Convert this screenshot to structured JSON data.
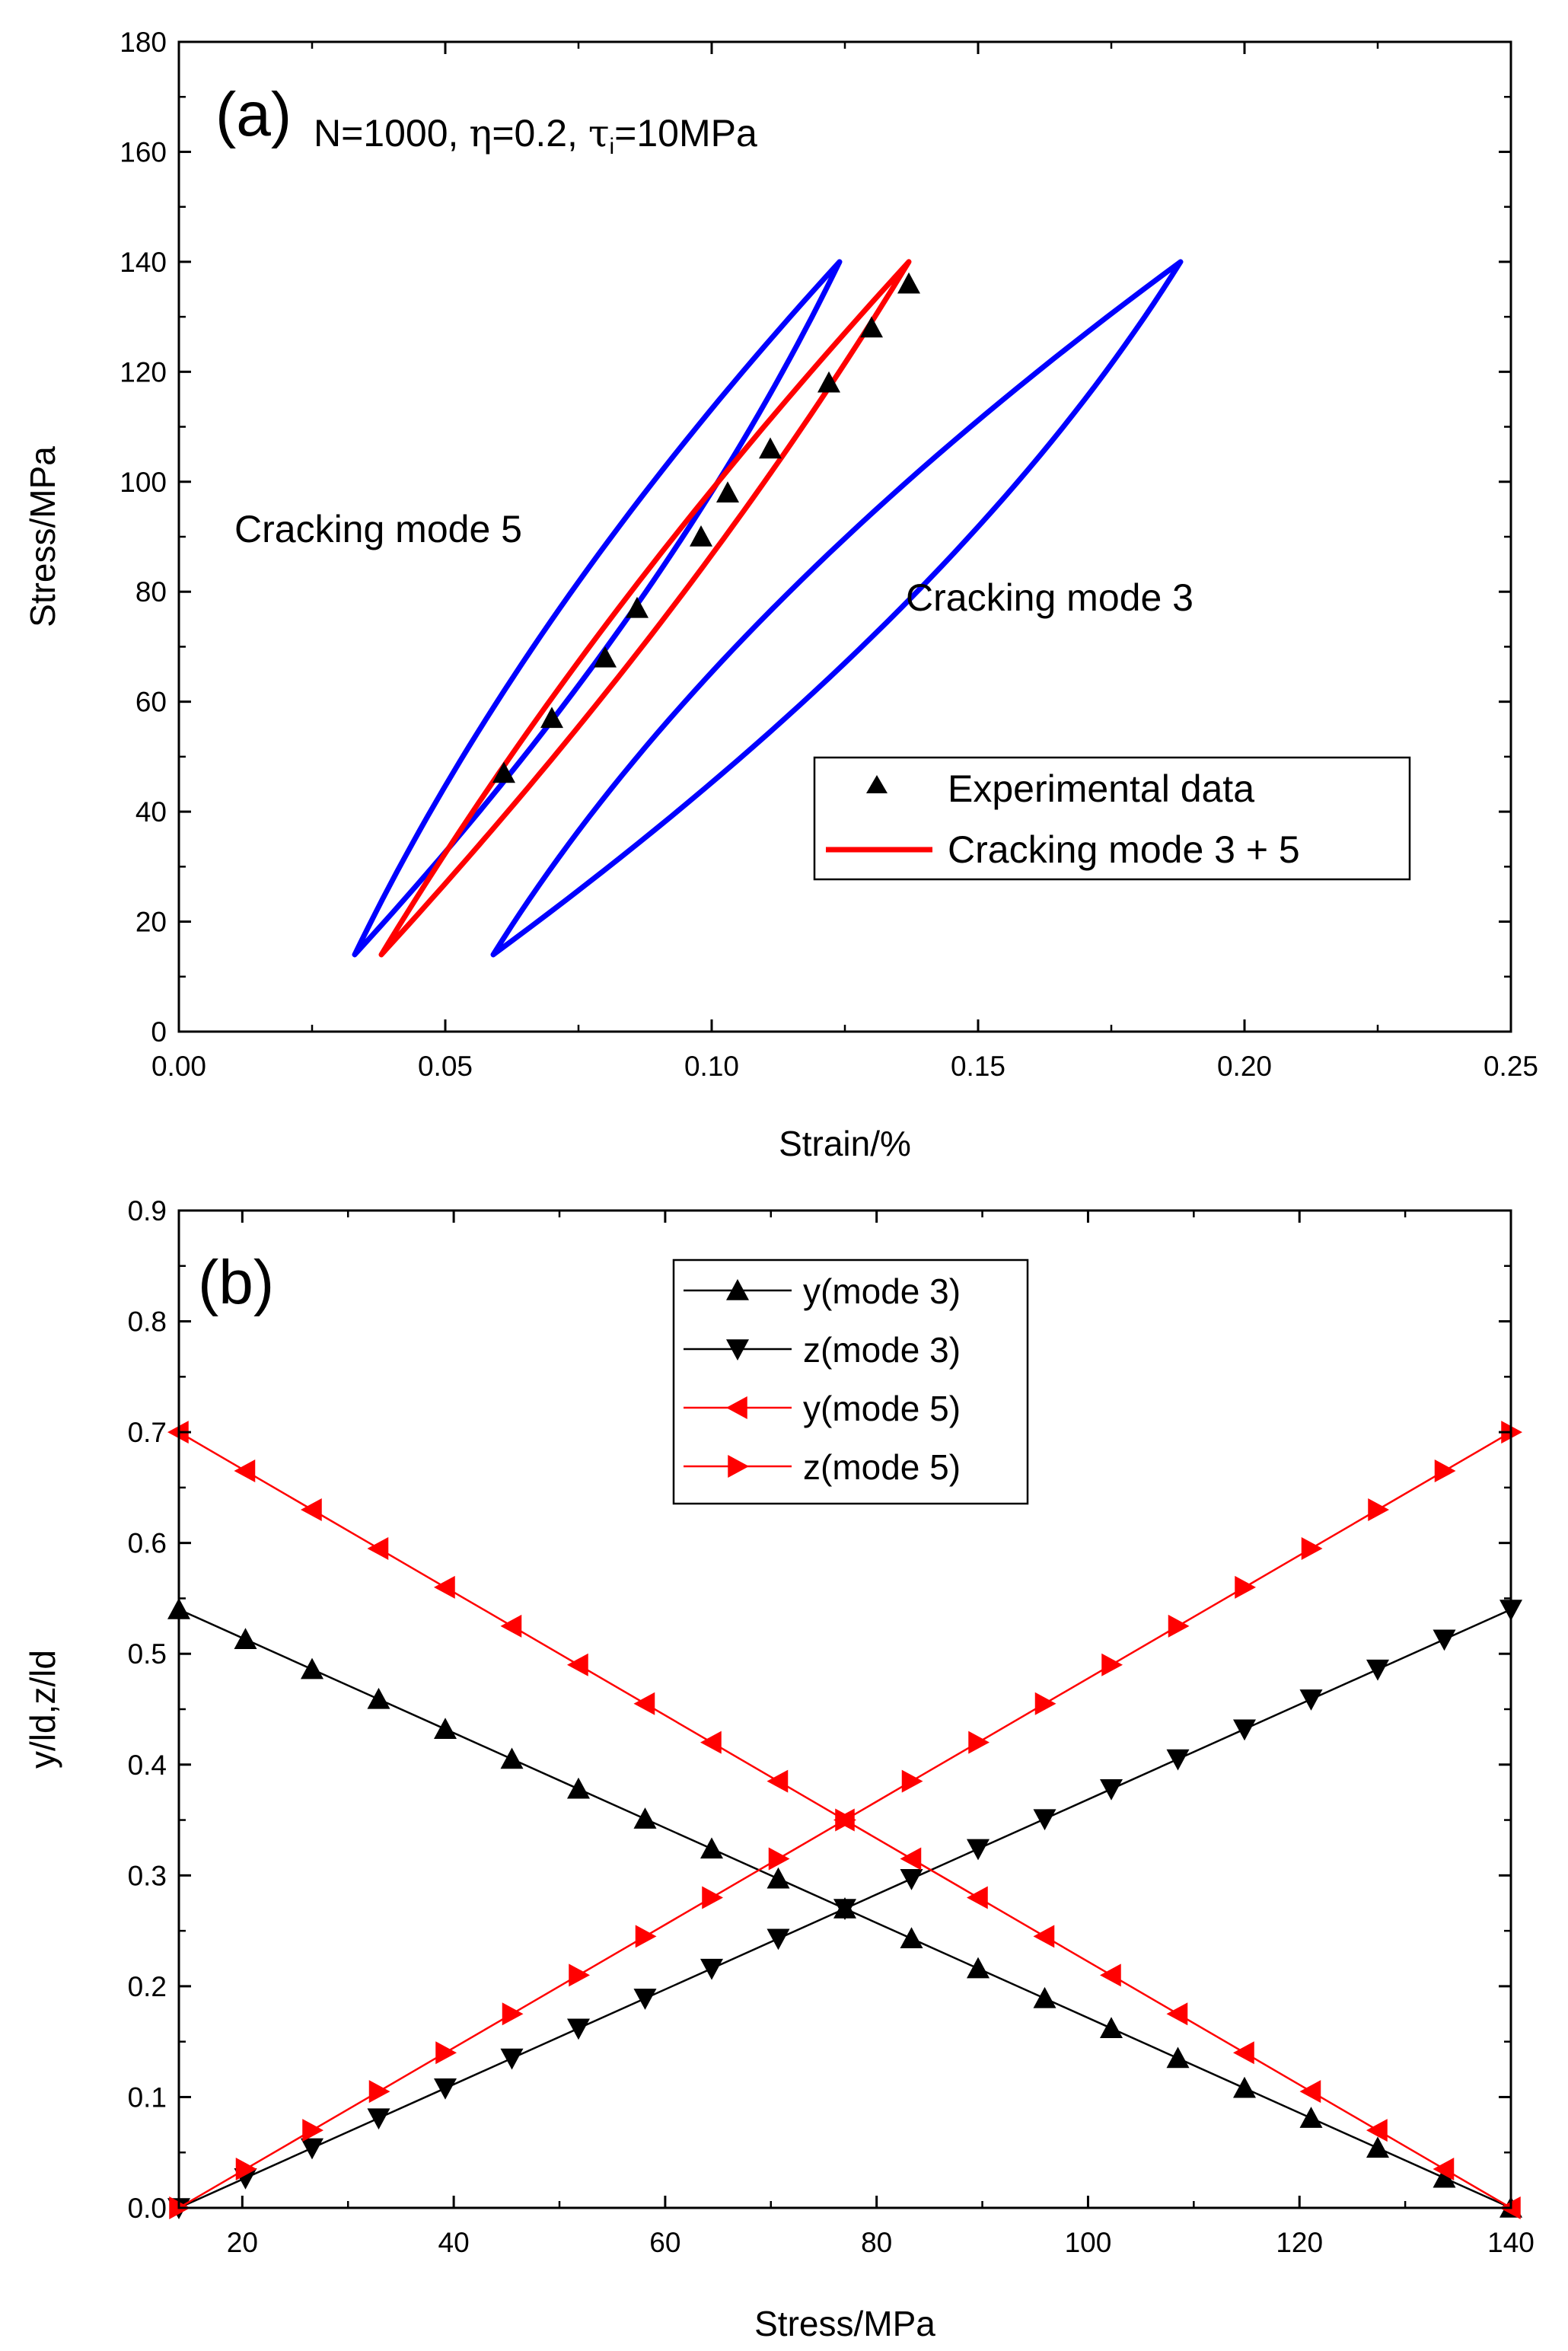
{
  "chart_data": [
    {
      "panel_label": "(a)",
      "type": "line",
      "xlabel": "Strain/%",
      "ylabel": "Stress/MPa",
      "xlim": [
        0.0,
        0.25
      ],
      "ylim": [
        0,
        180
      ],
      "xticks": [
        "0.00",
        "0.05",
        "0.10",
        "0.15",
        "0.20",
        "0.25"
      ],
      "yticks": [
        "0",
        "20",
        "40",
        "60",
        "80",
        "100",
        "120",
        "140",
        "160",
        "180"
      ],
      "params": {
        "N": "N=1000,",
        "eta_sym": "η",
        "eta": "=0.2,",
        "tau_sym": "τ",
        "tau_sub": "i",
        "tau": "=10MPa"
      },
      "annotations": {
        "mode5": "Cracking mode 5",
        "mode3": "Cracking mode 3"
      },
      "legend": [
        "Experimental data",
        "Cracking mode 3 + 5"
      ],
      "loops": [
        {
          "name": "Cracking mode 5",
          "color": "#0000ff",
          "min": [
            0.033,
            14
          ],
          "max": [
            0.124,
            140
          ],
          "bulge": 0.007
        },
        {
          "name": "Cracking mode 3",
          "color": "#0000ff",
          "min": [
            0.059,
            14
          ],
          "max": [
            0.188,
            140
          ],
          "bulge": 0.012
        },
        {
          "name": "Cracking mode 3 + 5",
          "color": "#ff0000",
          "min": [
            0.038,
            14
          ],
          "max": [
            0.137,
            140
          ],
          "bulge": 0.005
        }
      ],
      "experimental": {
        "x": [
          0.061,
          0.07,
          0.08,
          0.086,
          0.098,
          0.103,
          0.111,
          0.122,
          0.13,
          0.137
        ],
        "y": [
          47,
          57,
          68,
          77,
          90,
          98,
          106,
          118,
          128,
          136
        ]
      }
    },
    {
      "panel_label": "(b)",
      "type": "line",
      "xlabel": "Stress/MPa",
      "ylabel": "y/ld,z/ld",
      "xlim": [
        14,
        140
      ],
      "ylim": [
        0.0,
        0.9
      ],
      "xticks": [
        "20",
        "40",
        "60",
        "80",
        "100",
        "120",
        "140"
      ],
      "yticks": [
        "0.0",
        "0.1",
        "0.2",
        "0.3",
        "0.4",
        "0.5",
        "0.6",
        "0.7",
        "0.8",
        "0.9"
      ],
      "x": [
        14.0,
        20.3,
        26.6,
        32.9,
        39.2,
        45.5,
        51.8,
        58.1,
        64.4,
        70.7,
        77.0,
        83.3,
        89.6,
        95.9,
        102.2,
        108.5,
        114.8,
        121.1,
        127.4,
        133.7,
        140.0
      ],
      "series": [
        {
          "name": "y(mode 3)",
          "color": "#000000",
          "marker": "triangle-up",
          "values": [
            0.54,
            0.513,
            0.486,
            0.459,
            0.432,
            0.405,
            0.378,
            0.351,
            0.324,
            0.297,
            0.27,
            0.243,
            0.216,
            0.189,
            0.162,
            0.135,
            0.108,
            0.081,
            0.054,
            0.027,
            0.0
          ]
        },
        {
          "name": "z(mode 3)",
          "color": "#000000",
          "marker": "triangle-down",
          "values": [
            0.0,
            0.027,
            0.054,
            0.081,
            0.108,
            0.135,
            0.162,
            0.189,
            0.216,
            0.243,
            0.27,
            0.297,
            0.324,
            0.351,
            0.378,
            0.405,
            0.432,
            0.459,
            0.486,
            0.513,
            0.54
          ]
        },
        {
          "name": "y(mode 5)",
          "color": "#ff0000",
          "marker": "triangle-left",
          "values": [
            0.7,
            0.665,
            0.63,
            0.595,
            0.56,
            0.525,
            0.49,
            0.455,
            0.42,
            0.385,
            0.35,
            0.315,
            0.28,
            0.245,
            0.21,
            0.175,
            0.14,
            0.105,
            0.07,
            0.035,
            0.0
          ]
        },
        {
          "name": "z(mode 5)",
          "color": "#ff0000",
          "marker": "triangle-right",
          "values": [
            0.0,
            0.035,
            0.07,
            0.105,
            0.14,
            0.175,
            0.21,
            0.245,
            0.28,
            0.315,
            0.35,
            0.385,
            0.42,
            0.455,
            0.49,
            0.525,
            0.56,
            0.595,
            0.63,
            0.665,
            0.7
          ]
        }
      ]
    }
  ]
}
